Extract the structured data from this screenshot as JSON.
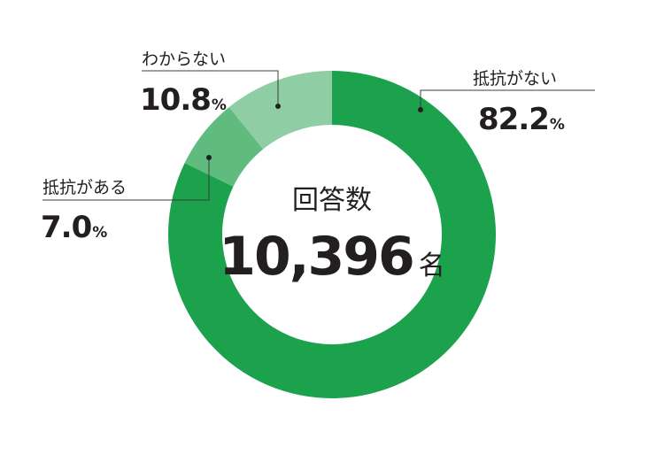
{
  "chart_data": {
    "type": "pie",
    "variant": "donut",
    "center": {
      "title": "回答数",
      "count": "10,396",
      "unit": "名"
    },
    "slices": [
      {
        "label": "抵抗がない",
        "value": 82.2,
        "display": "82.2",
        "unit": "%",
        "color": "#1ca24c"
      },
      {
        "label": "抵抗がある",
        "value": 7.0,
        "display": "7.0",
        "unit": "%",
        "color": "#5fbc7e"
      },
      {
        "label": "わからない",
        "value": 10.8,
        "display": "10.8",
        "unit": "%",
        "color": "#8fcea4"
      }
    ]
  }
}
